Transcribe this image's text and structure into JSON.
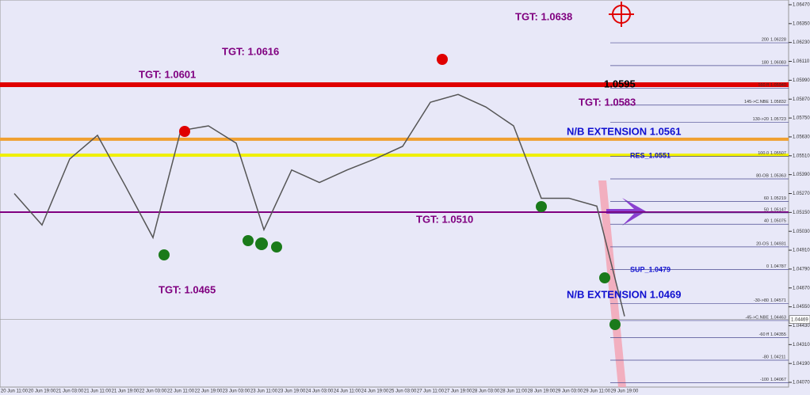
{
  "chart_data": {
    "type": "line",
    "categories": [
      "20 Jun 11:00",
      "20 Jun 19:00",
      "21 Jun 03:00",
      "21 Jun 11:00",
      "21 Jun 19:00",
      "22 Jun 03:00",
      "22 Jun 11:00",
      "22 Jun 19:00",
      "23 Jun 03:00",
      "23 Jun 11:00",
      "23 Jun 19:00",
      "24 Jun 03:00",
      "24 Jun 11:00",
      "24 Jun 19:00",
      "25 Jun 03:00",
      "27 Jun 11:00",
      "27 Jun 19:00",
      "28 Jun 03:00",
      "28 Jun 11:00",
      "28 Jun 19:00",
      "29 Jun 03:00",
      "29 Jun 11:00",
      "29 Jun 19:00"
    ],
    "series": [
      {
        "color": "#555555",
        "values": [
          1.0527,
          1.0507,
          1.0549,
          1.0564,
          1.0532,
          1.0499,
          1.0567,
          1.057,
          1.0559,
          1.0504,
          1.0542,
          1.0534,
          1.0542,
          1.0549,
          1.0557,
          1.0585,
          1.059,
          1.0582,
          1.057,
          1.0524,
          1.0524,
          1.0519,
          1.0449
        ]
      }
    ],
    "ylim": [
      1.0404,
      1.065
    ],
    "yticks": [
      {
        "value": 1.0647,
        "label": "1.06470"
      },
      {
        "value": 1.0635,
        "label": "1.06350"
      },
      {
        "value": 1.0623,
        "label": "1.06230"
      },
      {
        "value": 1.0611,
        "label": "1.06110"
      },
      {
        "value": 1.0599,
        "label": "1.05990"
      },
      {
        "value": 1.0587,
        "label": "1.05870"
      },
      {
        "value": 1.0575,
        "label": "1.05750"
      },
      {
        "value": 1.0563,
        "label": "1.05630"
      },
      {
        "value": 1.0551,
        "label": "1.05510"
      },
      {
        "value": 1.0539,
        "label": "1.05390"
      },
      {
        "value": 1.0527,
        "label": "1.05270"
      },
      {
        "value": 1.0515,
        "label": "1.05150"
      },
      {
        "value": 1.0503,
        "label": "1.05030"
      },
      {
        "value": 1.0491,
        "label": "1.04910"
      },
      {
        "value": 1.0479,
        "label": "1.04790"
      },
      {
        "value": 1.0467,
        "label": "1.04670"
      },
      {
        "value": 1.0455,
        "label": "1.04550"
      },
      {
        "value": 1.0443,
        "label": "1.04430"
      },
      {
        "value": 1.0431,
        "label": "1.04310"
      },
      {
        "value": 1.0419,
        "label": "1.04190"
      },
      {
        "value": 1.0407,
        "label": "1.04070"
      }
    ],
    "levels": [
      {
        "value": 1.05962,
        "color": "#e00000"
      },
      {
        "value": 1.05615,
        "color": "#f0a030"
      },
      {
        "value": 1.05514,
        "color": "#f0f000"
      },
      {
        "value": 1.05152,
        "color": "#800080"
      }
    ],
    "current_price": {
      "value": 1.04469,
      "label": "1.04469"
    },
    "fib_levels": [
      {
        "level": "200",
        "price": {
          "value": 1.06228,
          "label": "1.06228"
        }
      },
      {
        "level": "180",
        "price": {
          "value": 1.06083,
          "label": "1.06083"
        }
      },
      {
        "level": "160 ff",
        "price": {
          "value": 1.0594,
          "label": "1.05940"
        }
      },
      {
        "level": "145->C.NBE",
        "price": {
          "value": 1.05832,
          "label": "1.05832"
        }
      },
      {
        "level": "130->20",
        "price": {
          "value": 1.05723,
          "label": "1.05723"
        }
      },
      {
        "level": "100.0",
        "price": {
          "value": 1.05507,
          "label": "1.05507"
        }
      },
      {
        "level": "80-OB",
        "price": {
          "value": 1.05363,
          "label": "1.05363"
        }
      },
      {
        "level": "60",
        "price": {
          "value": 1.05219,
          "label": "1.05219"
        }
      },
      {
        "level": "50",
        "price": {
          "value": 1.05147,
          "label": "1.05147"
        }
      },
      {
        "level": "40",
        "price": {
          "value": 1.05075,
          "label": "1.05075"
        }
      },
      {
        "level": "20-OS",
        "price": {
          "value": 1.04931,
          "label": "1.04931"
        }
      },
      {
        "level": "0",
        "price": {
          "value": 1.04787,
          "label": "1.04787"
        }
      },
      {
        "level": "-30->80",
        "price": {
          "value": 1.04571,
          "label": "1.04571"
        }
      },
      {
        "level": "-45->C.NBE",
        "price": {
          "value": 1.04463,
          "label": "1.04463"
        }
      },
      {
        "level": "-60 ff",
        "price": {
          "value": 1.04355,
          "label": "1.04355"
        }
      },
      {
        "level": "-80",
        "price": {
          "value": 1.04211,
          "label": "1.04211"
        }
      },
      {
        "level": "-100",
        "price": {
          "value": 1.04067,
          "label": "1.04067"
        }
      }
    ],
    "annotations": [
      "TGT: 1.0638",
      "TGT: 1.0601",
      "TGT: 1.0616",
      "TGT: 1.0583",
      "N/B EXTENSION 1.0561",
      "TGT: 1.0510",
      "TGT: 1.0465",
      "N/B EXTENSION 1.0469",
      "SUP_1.0479",
      "RES_1.0551",
      "1.0595"
    ]
  }
}
